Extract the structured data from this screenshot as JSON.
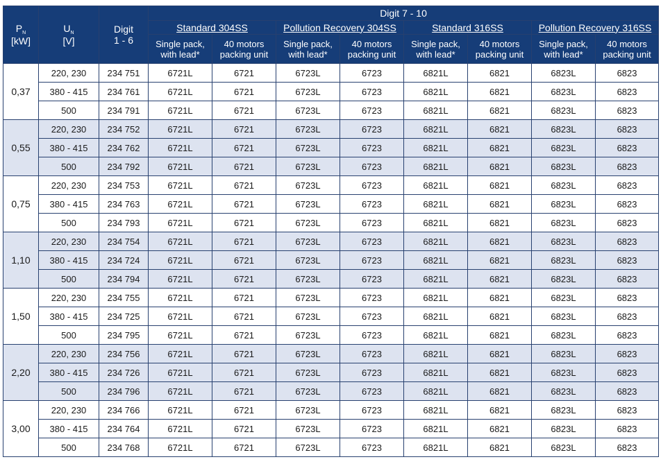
{
  "header": {
    "pn_label": "P",
    "pn_sub": "N",
    "pn_unit": "[kW]",
    "un_label": "U",
    "un_sub": "N",
    "un_unit": "[V]",
    "digit16_line1": "Digit",
    "digit16_line2": "1 - 6",
    "digit710": "Digit  7 - 10",
    "groups": [
      "Standard  304SS",
      "Pollution Recovery 304SS",
      "Standard  316SS",
      "Pollution Recovery 316SS"
    ],
    "single_line1": "Single pack,",
    "single_line2": "with lead*",
    "motors_line1": "40 motors",
    "motors_line2": "packing unit"
  },
  "rows": [
    {
      "power": "0,37",
      "shaded": false,
      "items": [
        {
          "voltage": "220, 230",
          "digit": "234 751",
          "codes": [
            "6721L",
            "6721",
            "6723L",
            "6723",
            "6821L",
            "6821",
            "6823L",
            "6823"
          ]
        },
        {
          "voltage": "380 - 415",
          "digit": "234 761",
          "codes": [
            "6721L",
            "6721",
            "6723L",
            "6723",
            "6821L",
            "6821",
            "6823L",
            "6823"
          ]
        },
        {
          "voltage": "500",
          "digit": "234 791",
          "codes": [
            "6721L",
            "6721",
            "6723L",
            "6723",
            "6821L",
            "6821",
            "6823L",
            "6823"
          ]
        }
      ]
    },
    {
      "power": "0,55",
      "shaded": true,
      "items": [
        {
          "voltage": "220, 230",
          "digit": "234 752",
          "codes": [
            "6721L",
            "6721",
            "6723L",
            "6723",
            "6821L",
            "6821",
            "6823L",
            "6823"
          ]
        },
        {
          "voltage": "380 - 415",
          "digit": "234 762",
          "codes": [
            "6721L",
            "6721",
            "6723L",
            "6723",
            "6821L",
            "6821",
            "6823L",
            "6823"
          ]
        },
        {
          "voltage": "500",
          "digit": "234 792",
          "codes": [
            "6721L",
            "6721",
            "6723L",
            "6723",
            "6821L",
            "6821",
            "6823L",
            "6823"
          ]
        }
      ]
    },
    {
      "power": "0,75",
      "shaded": false,
      "items": [
        {
          "voltage": "220, 230",
          "digit": "234 753",
          "codes": [
            "6721L",
            "6721",
            "6723L",
            "6723",
            "6821L",
            "6821",
            "6823L",
            "6823"
          ]
        },
        {
          "voltage": "380 - 415",
          "digit": "234 763",
          "codes": [
            "6721L",
            "6721",
            "6723L",
            "6723",
            "6821L",
            "6821",
            "6823L",
            "6823"
          ]
        },
        {
          "voltage": "500",
          "digit": "234 793",
          "codes": [
            "6721L",
            "6721",
            "6723L",
            "6723",
            "6821L",
            "6821",
            "6823L",
            "6823"
          ]
        }
      ]
    },
    {
      "power": "1,10",
      "shaded": true,
      "items": [
        {
          "voltage": "220, 230",
          "digit": "234 754",
          "codes": [
            "6721L",
            "6721",
            "6723L",
            "6723",
            "6821L",
            "6821",
            "6823L",
            "6823"
          ]
        },
        {
          "voltage": "380 - 415",
          "digit": "234 724",
          "codes": [
            "6721L",
            "6721",
            "6723L",
            "6723",
            "6821L",
            "6821",
            "6823L",
            "6823"
          ]
        },
        {
          "voltage": "500",
          "digit": "234 794",
          "codes": [
            "6721L",
            "6721",
            "6723L",
            "6723",
            "6821L",
            "6821",
            "6823L",
            "6823"
          ]
        }
      ]
    },
    {
      "power": "1,50",
      "shaded": false,
      "items": [
        {
          "voltage": "220, 230",
          "digit": "234 755",
          "codes": [
            "6721L",
            "6721",
            "6723L",
            "6723",
            "6821L",
            "6821",
            "6823L",
            "6823"
          ]
        },
        {
          "voltage": "380 - 415",
          "digit": "234 725",
          "codes": [
            "6721L",
            "6721",
            "6723L",
            "6723",
            "6821L",
            "6821",
            "6823L",
            "6823"
          ]
        },
        {
          "voltage": "500",
          "digit": "234 795",
          "codes": [
            "6721L",
            "6721",
            "6723L",
            "6723",
            "6821L",
            "6821",
            "6823L",
            "6823"
          ]
        }
      ]
    },
    {
      "power": "2,20",
      "shaded": true,
      "items": [
        {
          "voltage": "220, 230",
          "digit": "234 756",
          "codes": [
            "6721L",
            "6721",
            "6723L",
            "6723",
            "6821L",
            "6821",
            "6823L",
            "6823"
          ]
        },
        {
          "voltage": "380 - 415",
          "digit": "234 726",
          "codes": [
            "6721L",
            "6721",
            "6723L",
            "6723",
            "6821L",
            "6821",
            "6823L",
            "6823"
          ]
        },
        {
          "voltage": "500",
          "digit": "234 796",
          "codes": [
            "6721L",
            "6721",
            "6723L",
            "6723",
            "6821L",
            "6821",
            "6823L",
            "6823"
          ]
        }
      ]
    },
    {
      "power": "3,00",
      "shaded": false,
      "items": [
        {
          "voltage": "220, 230",
          "digit": "234 766",
          "codes": [
            "6721L",
            "6721",
            "6723L",
            "6723",
            "6821L",
            "6821",
            "6823L",
            "6823"
          ]
        },
        {
          "voltage": "380 - 415",
          "digit": "234 764",
          "codes": [
            "6721L",
            "6721",
            "6723L",
            "6723",
            "6821L",
            "6821",
            "6823L",
            "6823"
          ]
        },
        {
          "voltage": "500",
          "digit": "234 768",
          "codes": [
            "6721L",
            "6721",
            "6723L",
            "6723",
            "6821L",
            "6821",
            "6823L",
            "6823"
          ]
        }
      ]
    }
  ],
  "colors": {
    "header_bg": "#163d78",
    "header_text": "#ffffff",
    "shade_bg": "#dde3f0",
    "border": "#27406f"
  }
}
